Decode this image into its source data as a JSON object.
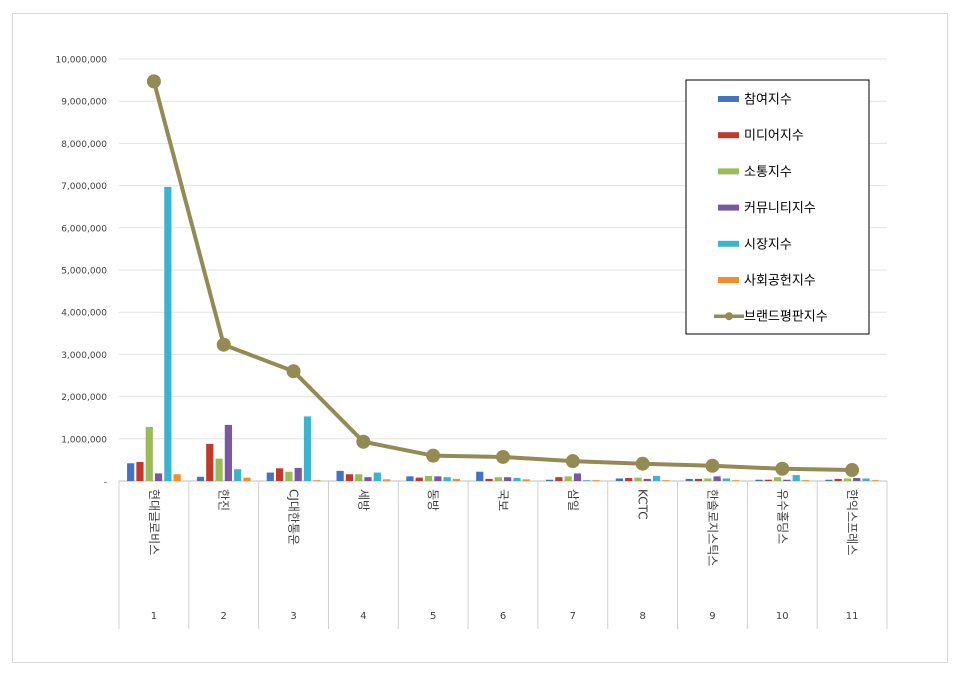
{
  "chart_data": {
    "type": "bar",
    "title": "",
    "xlabel": "",
    "ylabel": "",
    "ylim": [
      0,
      10000000
    ],
    "y_ticks": [
      "-",
      "1,000,000",
      "2,000,000",
      "3,000,000",
      "4,000,000",
      "5,000,000",
      "6,000,000",
      "7,000,000",
      "8,000,000",
      "9,000,000",
      "10,000,000"
    ],
    "grid": true,
    "legend_position": "right",
    "categories": [
      "현대글로비스",
      "한진",
      "CJ대한통운",
      "세방",
      "동방",
      "국보",
      "삼일",
      "KCTC",
      "한솔로지스틱스",
      "유수홀딩스",
      "한익스프레스"
    ],
    "ranks": [
      "1",
      "2",
      "3",
      "4",
      "5",
      "6",
      "7",
      "8",
      "9",
      "10",
      "11"
    ],
    "series": [
      {
        "name": "참여지수",
        "type": "bar",
        "color": "#4472c4",
        "values": [
          420000,
          100000,
          200000,
          240000,
          110000,
          220000,
          30000,
          60000,
          50000,
          30000,
          30000
        ]
      },
      {
        "name": "미디어지수",
        "type": "bar",
        "color": "#c0392b",
        "values": [
          450000,
          880000,
          300000,
          160000,
          80000,
          50000,
          90000,
          70000,
          50000,
          30000,
          50000
        ]
      },
      {
        "name": "소통지수",
        "type": "bar",
        "color": "#9bbb59",
        "values": [
          1280000,
          530000,
          220000,
          160000,
          120000,
          90000,
          110000,
          80000,
          60000,
          90000,
          60000
        ]
      },
      {
        "name": "커뮤니티지수",
        "type": "bar",
        "color": "#7a57a2",
        "values": [
          180000,
          1330000,
          310000,
          90000,
          110000,
          90000,
          180000,
          50000,
          110000,
          30000,
          70000
        ]
      },
      {
        "name": "시장지수",
        "type": "bar",
        "color": "#3cb4cf",
        "values": [
          6970000,
          280000,
          1530000,
          200000,
          90000,
          70000,
          20000,
          120000,
          60000,
          140000,
          60000
        ]
      },
      {
        "name": "사회공헌지수",
        "type": "bar",
        "color": "#f28e2b",
        "values": [
          160000,
          80000,
          20000,
          40000,
          50000,
          40000,
          20000,
          20000,
          20000,
          20000,
          20000
        ]
      },
      {
        "name": "브랜드평판지수",
        "type": "line",
        "color": "#948a54",
        "values": [
          9470000,
          3230000,
          2600000,
          930000,
          600000,
          570000,
          470000,
          410000,
          360000,
          290000,
          260000
        ]
      }
    ]
  }
}
